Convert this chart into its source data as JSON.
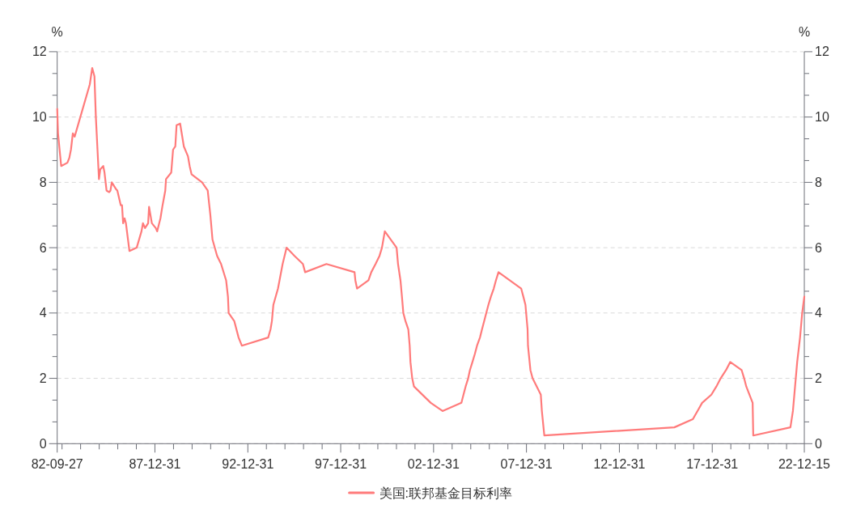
{
  "chart_data": {
    "type": "line",
    "ylabel": "%",
    "y2label": "%",
    "x": [
      "1982-09-27",
      "1982-10-13",
      "1982-12-14",
      "1983-04-15",
      "1983-05-23",
      "1983-06-24",
      "1983-07-31",
      "1983-09-05",
      "1984-06-29",
      "1984-08-15",
      "1984-09-28",
      "1984-10-26",
      "1984-12-26",
      "1985-01-21",
      "1985-03-20",
      "1985-04-14",
      "1985-05-24",
      "1985-07-15",
      "1985-08-09",
      "1985-09-04",
      "1985-11-23",
      "1985-12-22",
      "1986-02-27",
      "1986-03-24",
      "1986-04-15",
      "1986-05-14",
      "1986-06-09",
      "1986-08-17",
      "1987-01-07",
      "1987-04-11",
      "1987-05-10",
      "1987-06-19",
      "1987-08-20",
      "1987-09-07",
      "1987-11-01",
      "1988-01-17",
      "1988-02-13",
      "1988-04-18",
      "1988-05-24",
      "1988-07-22",
      "1988-08-05",
      "1988-11-16",
      "1988-12-22",
      "1989-02-04",
      "1989-03-01",
      "1989-05-10",
      "1989-07-22",
      "1989-10-11",
      "1989-11-13",
      "1989-12-20",
      "1990-07-15",
      "1990-11-03",
      "1990-12-25",
      "1991-02-05",
      "1991-05-07",
      "1991-07-24",
      "1991-10-31",
      "1991-12-06",
      "1991-12-20",
      "1992-04-09",
      "1992-07-02",
      "1992-09-04",
      "1994-02-04",
      "1994-03-22",
      "1994-04-18",
      "1994-05-17",
      "1994-08-16",
      "1994-11-15",
      "1995-02-01",
      "1995-07-06",
      "1995-12-19",
      "1996-01-31",
      "1997-03-25",
      "1998-09-29",
      "1998-10-15",
      "1998-11-17",
      "1999-06-30",
      "1999-08-24",
      "1999-11-16",
      "2000-02-02",
      "2000-03-21",
      "2000-05-16",
      "2001-01-03",
      "2001-01-31",
      "2001-03-20",
      "2001-04-18",
      "2001-05-15",
      "2001-06-27",
      "2001-08-21",
      "2001-09-17",
      "2001-10-02",
      "2001-11-06",
      "2001-12-11",
      "2002-11-06",
      "2003-06-25",
      "2004-06-30",
      "2004-08-10",
      "2004-09-21",
      "2004-11-10",
      "2004-12-14",
      "2005-02-02",
      "2005-03-22",
      "2005-05-03",
      "2005-06-30",
      "2005-08-09",
      "2005-09-20",
      "2005-11-01",
      "2005-12-13",
      "2006-01-31",
      "2006-03-28",
      "2006-05-10",
      "2006-06-29",
      "2007-09-18",
      "2007-10-31",
      "2007-12-11",
      "2008-01-22",
      "2008-01-30",
      "2008-03-18",
      "2008-04-30",
      "2008-10-08",
      "2008-10-29",
      "2008-12-16",
      "2015-12-17",
      "2016-12-15",
      "2017-03-16",
      "2017-06-15",
      "2017-12-14",
      "2018-03-22",
      "2018-06-14",
      "2018-09-27",
      "2018-12-20",
      "2019-08-01",
      "2019-09-19",
      "2019-10-31",
      "2020-03-04",
      "2020-03-16",
      "2022-03-17",
      "2022-05-05",
      "2022-06-16",
      "2022-07-28",
      "2022-09-22",
      "2022-11-03",
      "2022-12-15"
    ],
    "series": [
      {
        "name": "美国:联邦基金目标利率",
        "color": "#ff7b7b",
        "values": [
          10.25,
          9.5,
          8.5,
          8.6,
          8.75,
          9.0,
          9.5,
          9.4,
          11.0,
          11.5,
          11.25,
          10.0,
          8.1,
          8.4,
          8.5,
          8.3,
          7.75,
          7.7,
          7.75,
          8.0,
          7.8,
          7.75,
          7.3,
          7.3,
          6.75,
          6.9,
          6.75,
          5.9,
          6.0,
          6.5,
          6.75,
          6.6,
          6.75,
          7.25,
          6.75,
          6.6,
          6.5,
          6.9,
          7.25,
          7.75,
          8.1,
          8.3,
          9.0,
          9.1,
          9.75,
          9.8,
          9.1,
          8.8,
          8.5,
          8.25,
          8.0,
          7.75,
          7.0,
          6.25,
          5.75,
          5.5,
          5.0,
          4.5,
          4.0,
          3.75,
          3.25,
          3.0,
          3.25,
          3.5,
          3.75,
          4.25,
          4.75,
          5.5,
          6.0,
          5.75,
          5.5,
          5.25,
          5.5,
          5.25,
          5.0,
          4.75,
          5.0,
          5.25,
          5.5,
          5.75,
          6.0,
          6.5,
          6.0,
          5.5,
          5.0,
          4.5,
          4.0,
          3.75,
          3.5,
          3.0,
          2.5,
          2.0,
          1.75,
          1.25,
          1.0,
          1.25,
          1.5,
          1.75,
          2.0,
          2.25,
          2.5,
          2.75,
          3.0,
          3.25,
          3.5,
          3.75,
          4.0,
          4.25,
          4.5,
          4.75,
          5.0,
          5.25,
          4.75,
          4.5,
          4.25,
          3.5,
          3.0,
          2.25,
          2.0,
          1.5,
          1.0,
          0.25,
          0.5,
          0.75,
          1.0,
          1.25,
          1.5,
          1.75,
          2.0,
          2.25,
          2.5,
          2.25,
          2.0,
          1.75,
          1.25,
          0.25,
          0.5,
          1.0,
          1.75,
          2.5,
          3.25,
          4.0,
          4.5
        ]
      }
    ],
    "xlim": [
      "1982-09-27",
      "2022-12-15"
    ],
    "xticks": [
      {
        "value": "1982-09-27",
        "label": "82-09-27"
      },
      {
        "value": "1982-12-31",
        "label": null
      },
      {
        "value": "1983-12-31",
        "label": null
      },
      {
        "value": "1984-12-31",
        "label": null
      },
      {
        "value": "1985-12-31",
        "label": null
      },
      {
        "value": "1986-12-31",
        "label": null
      },
      {
        "value": "1987-12-31",
        "label": "87-12-31"
      },
      {
        "value": "1988-12-31",
        "label": null
      },
      {
        "value": "1989-12-31",
        "label": null
      },
      {
        "value": "1990-12-31",
        "label": null
      },
      {
        "value": "1991-12-31",
        "label": null
      },
      {
        "value": "1992-12-31",
        "label": "92-12-31"
      },
      {
        "value": "1993-12-31",
        "label": null
      },
      {
        "value": "1994-12-31",
        "label": null
      },
      {
        "value": "1995-12-31",
        "label": null
      },
      {
        "value": "1996-12-31",
        "label": null
      },
      {
        "value": "1997-12-31",
        "label": "97-12-31"
      },
      {
        "value": "1998-12-31",
        "label": null
      },
      {
        "value": "1999-12-31",
        "label": null
      },
      {
        "value": "2000-12-31",
        "label": null
      },
      {
        "value": "2001-12-31",
        "label": null
      },
      {
        "value": "2002-12-31",
        "label": "02-12-31"
      },
      {
        "value": "2003-12-31",
        "label": null
      },
      {
        "value": "2004-12-31",
        "label": null
      },
      {
        "value": "2005-12-31",
        "label": null
      },
      {
        "value": "2006-12-31",
        "label": null
      },
      {
        "value": "2007-12-31",
        "label": "07-12-31"
      },
      {
        "value": "2008-12-31",
        "label": null
      },
      {
        "value": "2009-12-31",
        "label": null
      },
      {
        "value": "2010-12-31",
        "label": null
      },
      {
        "value": "2011-12-31",
        "label": null
      },
      {
        "value": "2012-12-31",
        "label": "12-12-31"
      },
      {
        "value": "2013-12-31",
        "label": null
      },
      {
        "value": "2014-12-31",
        "label": null
      },
      {
        "value": "2015-12-31",
        "label": null
      },
      {
        "value": "2016-12-31",
        "label": null
      },
      {
        "value": "2017-12-31",
        "label": "17-12-31"
      },
      {
        "value": "2018-12-31",
        "label": null
      },
      {
        "value": "2019-12-31",
        "label": null
      },
      {
        "value": "2020-12-31",
        "label": null
      },
      {
        "value": "2021-12-31",
        "label": null
      },
      {
        "value": "2022-12-15",
        "label": "22-12-15"
      }
    ],
    "ylim": [
      0,
      12
    ],
    "yticks": [
      0,
      {
        "value": 0.667,
        "label": null
      },
      {
        "value": 1.333,
        "label": null
      },
      2,
      {
        "value": 2.667,
        "label": null
      },
      {
        "value": 3.333,
        "label": null
      },
      4,
      {
        "value": 4.667,
        "label": null
      },
      {
        "value": 5.333,
        "label": null
      },
      6,
      {
        "value": 6.667,
        "label": null
      },
      {
        "value": 7.333,
        "label": null
      },
      8,
      {
        "value": 8.667,
        "label": null
      },
      {
        "value": 9.333,
        "label": null
      },
      10,
      {
        "value": 10.667,
        "label": null
      },
      {
        "value": 11.333,
        "label": null
      },
      12
    ],
    "y2lim": [
      0,
      12
    ],
    "y2ticks": [
      0,
      {
        "value": 0.667,
        "label": null
      },
      {
        "value": 1.333,
        "label": null
      },
      2,
      {
        "value": 2.667,
        "label": null
      },
      {
        "value": 3.333,
        "label": null
      },
      4,
      {
        "value": 4.667,
        "label": null
      },
      {
        "value": 5.333,
        "label": null
      },
      6,
      {
        "value": 6.667,
        "label": null
      },
      {
        "value": 7.333,
        "label": null
      },
      8,
      {
        "value": 8.667,
        "label": null
      },
      {
        "value": 9.333,
        "label": null
      },
      10,
      {
        "value": 10.667,
        "label": null
      },
      {
        "value": 11.333,
        "label": null
      },
      12
    ],
    "grid": "y",
    "legend": "bottom",
    "line_style": "solid"
  }
}
